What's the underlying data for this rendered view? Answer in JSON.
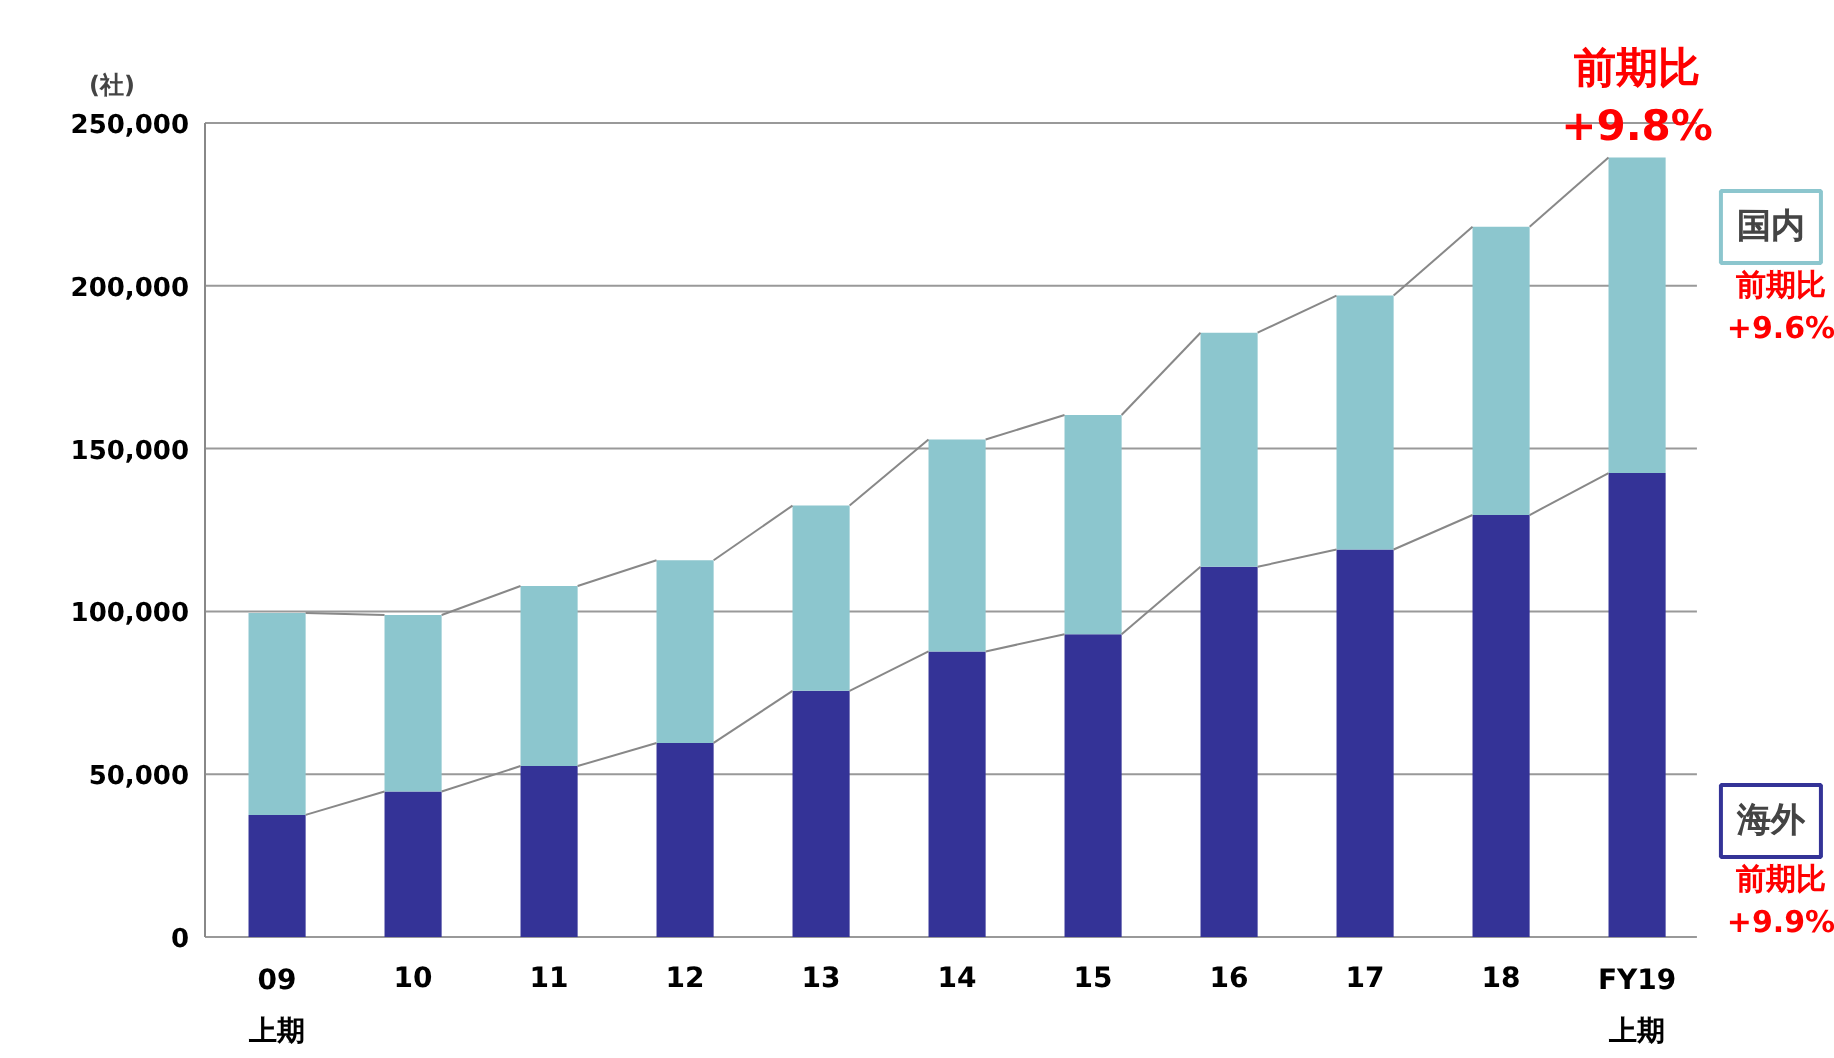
{
  "chart_data": {
    "type": "bar",
    "stacked": true,
    "ylabel": "(社)",
    "categories": [
      "09\n上期",
      "10",
      "11",
      "12",
      "13",
      "14",
      "15",
      "16",
      "17",
      "18",
      "FY19\n上期"
    ],
    "series": [
      {
        "name": "海外",
        "color": "#343397",
        "values": [
          37500,
          44700,
          52500,
          59600,
          75600,
          87700,
          93000,
          113700,
          119000,
          129600,
          142500
        ]
      },
      {
        "name": "国内",
        "color": "#8cc6ce",
        "values": [
          62000,
          54200,
          55300,
          56100,
          56900,
          65100,
          67300,
          71900,
          78000,
          88500,
          96900
        ]
      }
    ],
    "ylim": [
      0,
      250000
    ],
    "yticks": [
      0,
      {
        "value": 50000,
        "label": "50,000"
      },
      {
        "value": 100000,
        "label": "100,000"
      },
      {
        "value": 150000,
        "label": "150,000"
      },
      {
        "value": 200000,
        "label": "200,000"
      },
      {
        "value": 250000,
        "label": "250,000"
      }
    ],
    "grid": "y",
    "legend": "right",
    "annotations": [
      {
        "text": "前期比\n+9.8%",
        "y": 239400
      },
      "前期比\n+9.6%",
      "前期比\n+9.9%"
    ]
  }
}
